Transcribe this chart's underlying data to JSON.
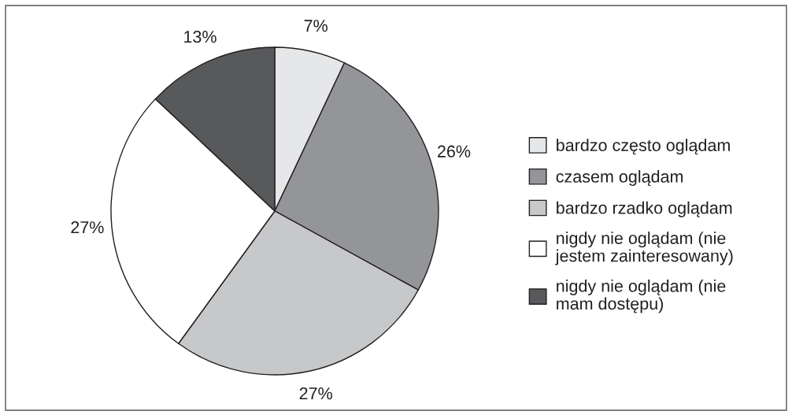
{
  "chart_data": {
    "type": "pie",
    "categories": [
      "bardzo często oglądam",
      "czasem oglądam",
      "bardzo rzadko oglądam",
      "nigdy nie oglądam (nie\njestem zainteresowany)",
      "nigdy nie oglądam (nie\nmam dostępu)"
    ],
    "values": [
      7,
      26,
      27,
      27,
      13
    ],
    "colors": [
      "#e6e7e8",
      "#939598",
      "#c7c8ca",
      "#ffffff",
      "#58595b"
    ],
    "value_labels": [
      "7%",
      "26%",
      "27%",
      "27%",
      "13%"
    ],
    "legend": "right"
  }
}
